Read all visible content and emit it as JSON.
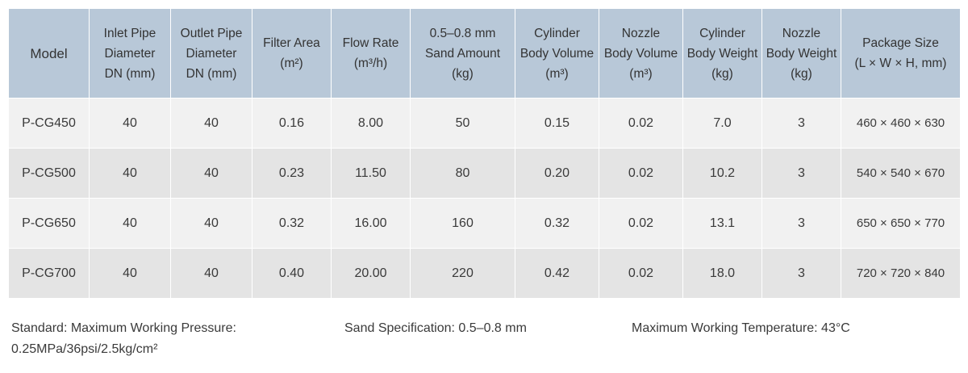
{
  "table": {
    "headers": [
      [
        "Model"
      ],
      [
        "Inlet Pipe",
        "Diameter",
        "DN (mm)"
      ],
      [
        "Outlet Pipe",
        "Diameter",
        "DN (mm)"
      ],
      [
        "Filter Area",
        "(m²)"
      ],
      [
        "Flow Rate",
        "(m³/h)"
      ],
      [
        "0.5–0.8 mm",
        "Sand Amount",
        "(kg)"
      ],
      [
        "Cylinder",
        "Body Volume",
        "(m³)"
      ],
      [
        "Nozzle",
        "Body Volume",
        "(m³)"
      ],
      [
        "Cylinder",
        "Body Weight",
        "(kg)"
      ],
      [
        "Nozzle",
        "Body Weight",
        "(kg)"
      ],
      [
        "Package Size",
        "(L × W × H, mm)"
      ]
    ],
    "rows": [
      [
        "P-CG450",
        "40",
        "40",
        "0.16",
        "8.00",
        "50",
        "0.15",
        "0.02",
        "7.0",
        "3",
        "460 × 460 × 630"
      ],
      [
        "P-CG500",
        "40",
        "40",
        "0.23",
        "11.50",
        "80",
        "0.20",
        "0.02",
        "10.2",
        "3",
        "540 × 540 × 670"
      ],
      [
        "P-CG650",
        "40",
        "40",
        "0.32",
        "16.00",
        "160",
        "0.32",
        "0.02",
        "13.1",
        "3",
        "650 × 650 × 770"
      ],
      [
        "P-CG700",
        "40",
        "40",
        "0.40",
        "20.00",
        "220",
        "0.42",
        "0.02",
        "18.0",
        "3",
        "720 × 720 × 840"
      ]
    ]
  },
  "notes": {
    "standard_line1": "Standard: Maximum Working Pressure:",
    "standard_line2": "0.25MPa/36psi/2.5kg/cm²",
    "sand_spec": "Sand Specification:  0.5–0.8 mm",
    "max_temp": "Maximum Working Temperature:  43°C"
  },
  "colors": {
    "header_bg": "#b8c8d8",
    "row_light": "#f1f1f1",
    "row_dark": "#e4e4e4"
  }
}
